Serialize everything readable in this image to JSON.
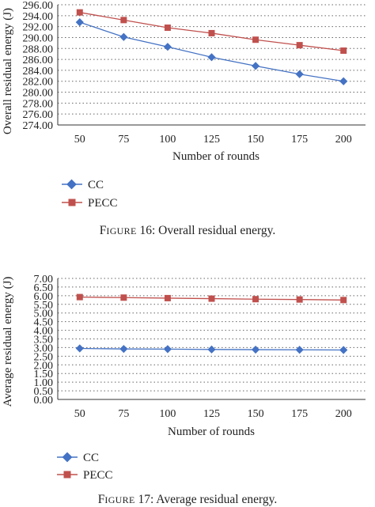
{
  "figures": [
    {
      "caption": {
        "label": "Figure 16:",
        "text": "Overall residual energy."
      },
      "legend": [
        {
          "key": "cc",
          "label": "CC"
        },
        {
          "key": "pecc",
          "label": "PECC"
        }
      ]
    },
    {
      "caption": {
        "label": "Figure 17:",
        "text": "Average residual energy."
      },
      "legend": [
        {
          "key": "cc",
          "label": "CC"
        },
        {
          "key": "pecc",
          "label": "PECC"
        }
      ]
    }
  ],
  "colors": {
    "cc": "#4472c4",
    "pecc": "#c0504d",
    "grid": "#666666",
    "axis": "#333333"
  },
  "chart_data": [
    {
      "type": "line",
      "xlabel": "Number of rounds",
      "ylabel": "Overall residual energy (J)",
      "categories": [
        "50",
        "75",
        "100",
        "125",
        "150",
        "175",
        "200"
      ],
      "ylim": [
        274.0,
        296.0
      ],
      "yticks": [
        "274.00",
        "276.00",
        "278.00",
        "280.00",
        "282.00",
        "284.00",
        "286.00",
        "288.00",
        "290.00",
        "292.00",
        "294.00",
        "296.00"
      ],
      "grid": "horizontal dotted",
      "legend_position": "bottom-left",
      "series": [
        {
          "name": "CC",
          "marker": "diamond",
          "values": [
            292.8,
            290.1,
            288.3,
            286.4,
            284.8,
            283.3,
            282.0
          ]
        },
        {
          "name": "PECC",
          "marker": "square",
          "values": [
            294.6,
            293.2,
            291.8,
            290.8,
            289.6,
            288.6,
            287.6
          ]
        }
      ]
    },
    {
      "type": "line",
      "xlabel": "Number of rounds",
      "ylabel": "Average residual energy (J)",
      "categories": [
        "50",
        "75",
        "100",
        "125",
        "150",
        "175",
        "200"
      ],
      "ylim": [
        0.0,
        7.0
      ],
      "yticks": [
        "0.00",
        "0.50",
        "1.00",
        "1.50",
        "2.00",
        "2.50",
        "3.00",
        "3.50",
        "4.00",
        "4.50",
        "5.00",
        "5.50",
        "6.00",
        "6.50",
        "7.00"
      ],
      "grid": "horizontal dotted",
      "legend_position": "bottom-left",
      "series": [
        {
          "name": "CC",
          "marker": "diamond",
          "values": [
            2.95,
            2.92,
            2.91,
            2.89,
            2.88,
            2.87,
            2.86
          ]
        },
        {
          "name": "PECC",
          "marker": "square",
          "values": [
            5.92,
            5.89,
            5.86,
            5.83,
            5.8,
            5.78,
            5.75
          ]
        }
      ]
    }
  ]
}
